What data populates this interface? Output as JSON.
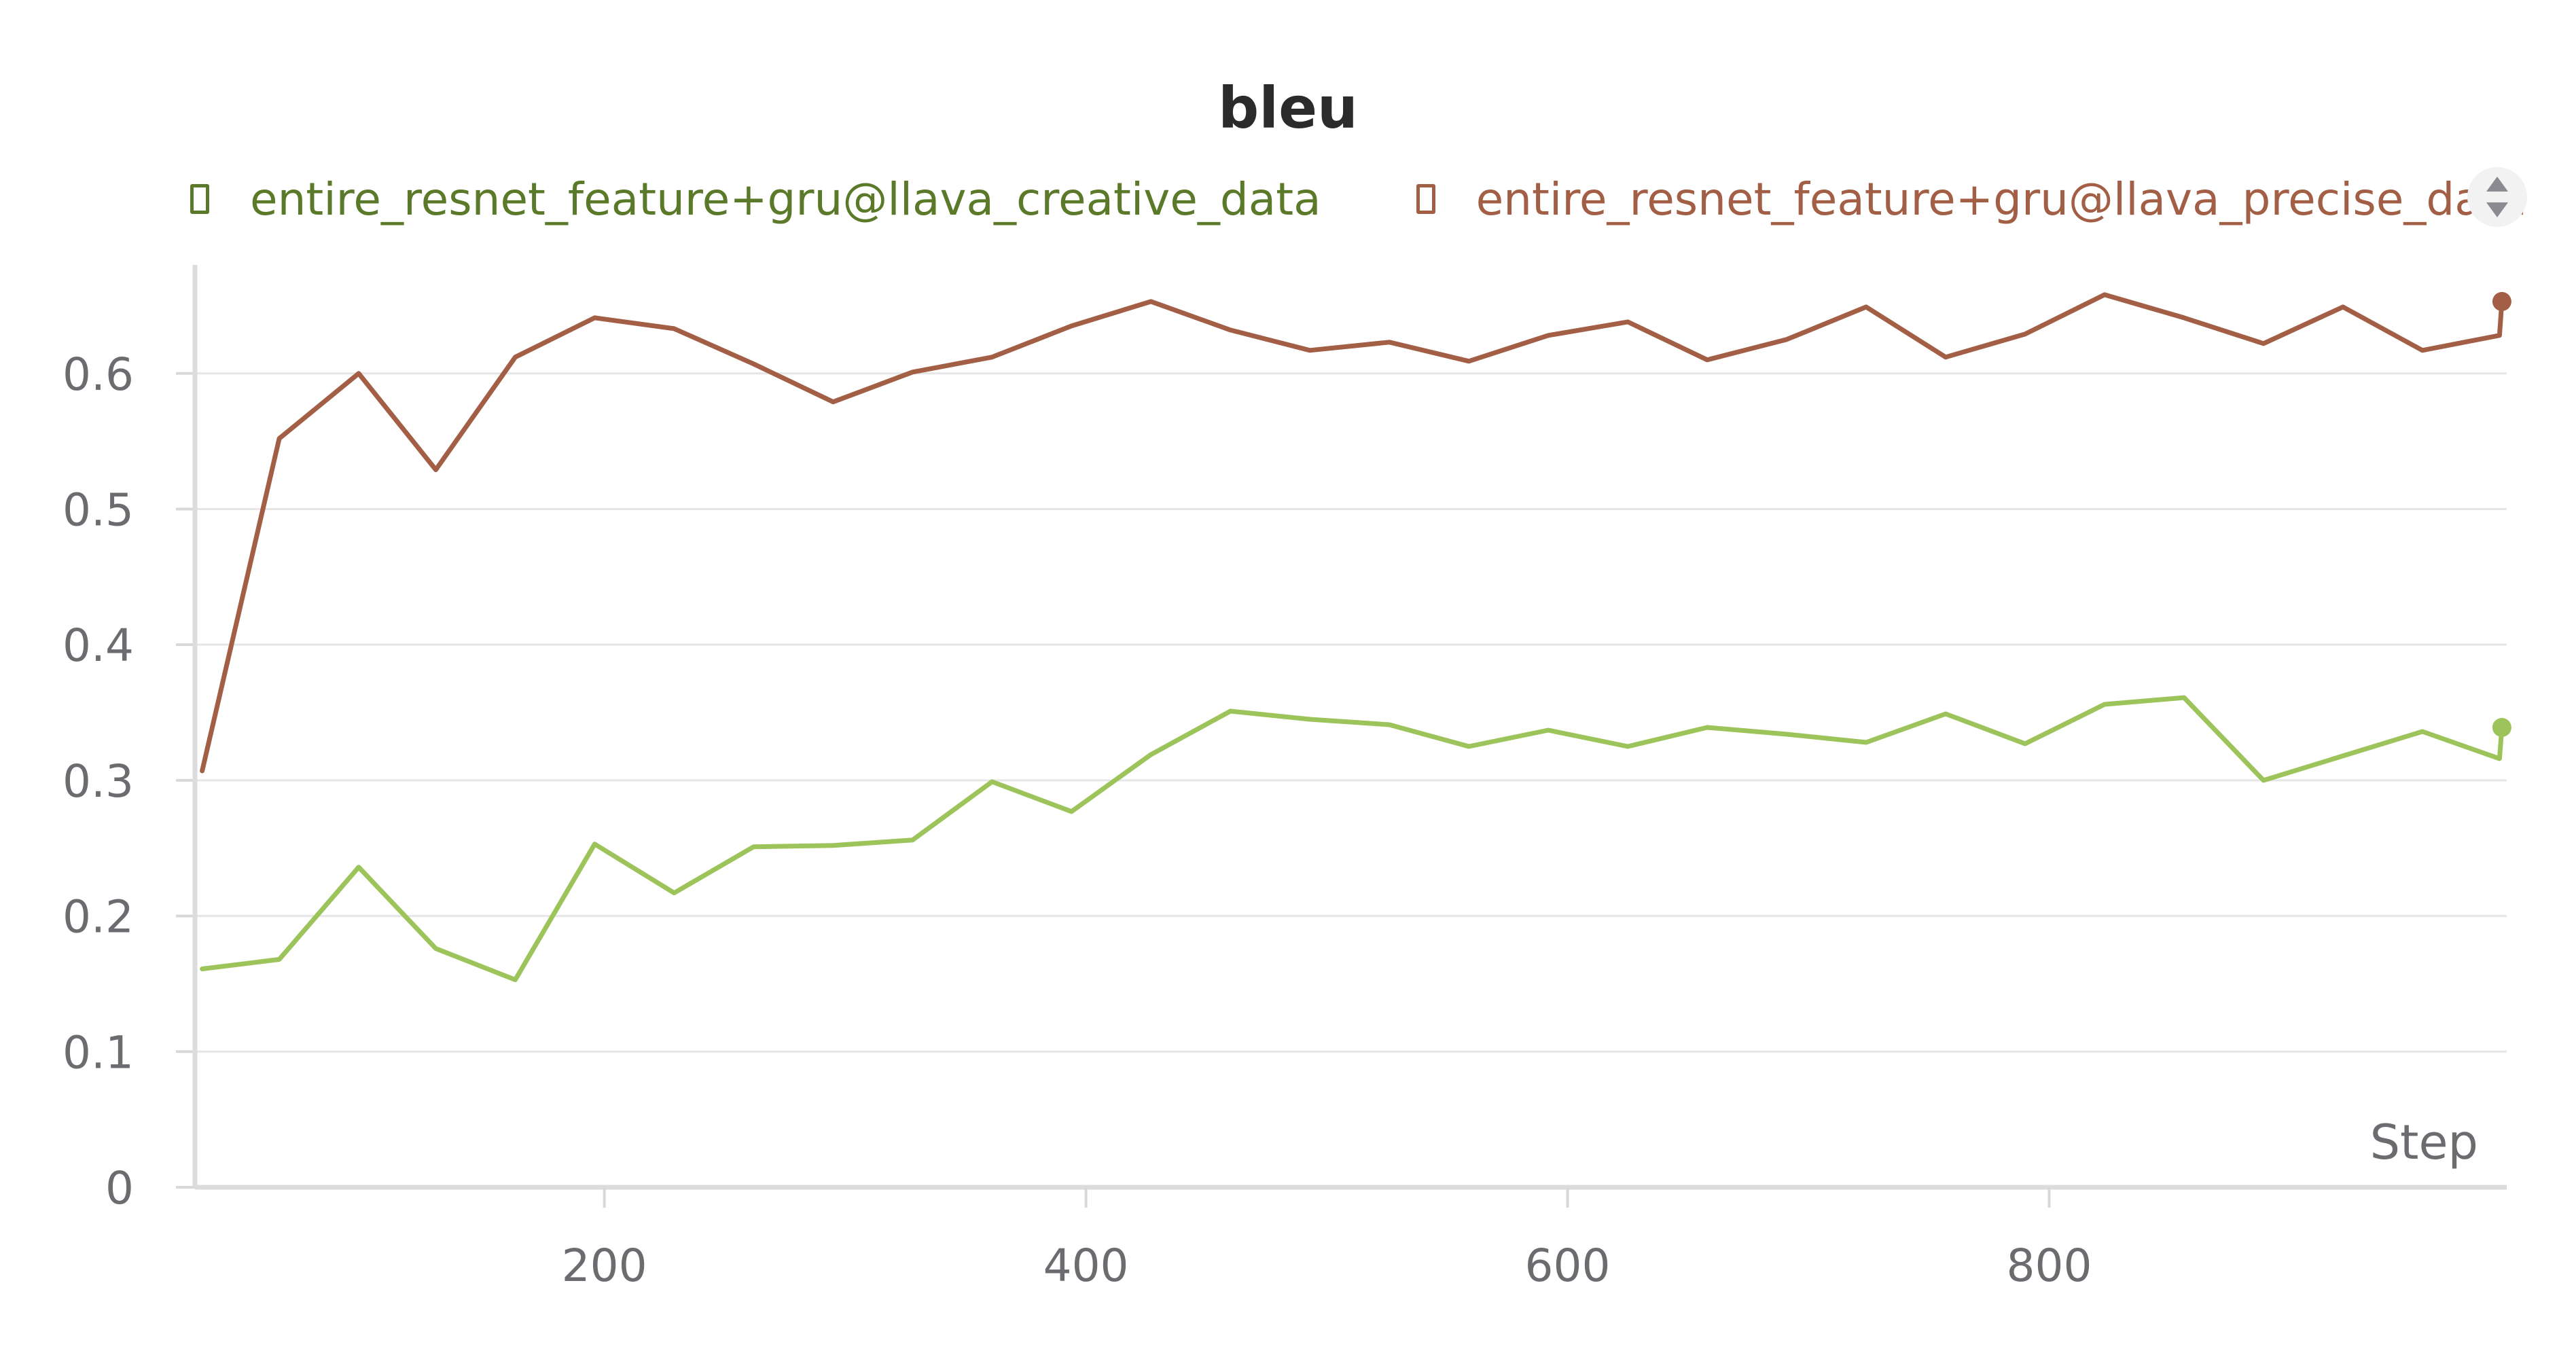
{
  "chart_data": {
    "type": "line",
    "title": "bleu",
    "xlabel": "Step",
    "ylabel": "",
    "xlim": [
      30,
      990
    ],
    "ylim": [
      0,
      0.68
    ],
    "x_ticks": [
      200,
      400,
      600,
      800
    ],
    "y_ticks": [
      0,
      0.1,
      0.2,
      0.3,
      0.4,
      0.5,
      0.6
    ],
    "y_tick_labels": [
      "0",
      "0.1",
      "0.2",
      "0.3",
      "0.4",
      "0.5",
      "0.6"
    ],
    "x_tick_labels": [
      "200",
      "400",
      "600",
      "800"
    ],
    "grid": true,
    "legend_position": "top",
    "series": [
      {
        "name": "entire_resnet_feature+gru@llava_creative_data",
        "color": "#9cc45b",
        "legend_color": "#5a7a2a",
        "x": [
          33,
          65,
          98,
          130,
          163,
          196,
          229,
          262,
          295,
          328,
          361,
          394,
          427,
          460,
          493,
          526,
          559,
          592,
          625,
          658,
          691,
          724,
          757,
          790,
          823,
          856,
          889,
          922,
          955,
          987,
          988
        ],
        "y": [
          0.161,
          0.168,
          0.236,
          0.176,
          0.153,
          0.253,
          0.217,
          0.251,
          0.252,
          0.256,
          0.299,
          0.277,
          0.319,
          0.351,
          0.345,
          0.341,
          0.325,
          0.337,
          0.325,
          0.339,
          0.334,
          0.328,
          0.349,
          0.327,
          0.356,
          0.361,
          0.3,
          0.318,
          0.336,
          0.316,
          0.339
        ]
      },
      {
        "name": "entire_resnet_feature+gru@llava_precise_data",
        "color": "#a35f45",
        "legend_color": "#a35f45",
        "x": [
          33,
          65,
          98,
          130,
          163,
          196,
          229,
          262,
          295,
          328,
          361,
          394,
          427,
          460,
          493,
          526,
          559,
          592,
          625,
          658,
          691,
          724,
          757,
          790,
          823,
          856,
          889,
          922,
          955,
          987,
          988
        ],
        "y": [
          0.307,
          0.552,
          0.6,
          0.529,
          0.612,
          0.641,
          0.633,
          0.607,
          0.579,
          0.601,
          0.612,
          0.635,
          0.653,
          0.632,
          0.617,
          0.623,
          0.609,
          0.628,
          0.638,
          0.61,
          0.625,
          0.649,
          0.612,
          0.629,
          0.658,
          0.641,
          0.622,
          0.649,
          0.617,
          0.628,
          0.653
        ]
      }
    ]
  }
}
